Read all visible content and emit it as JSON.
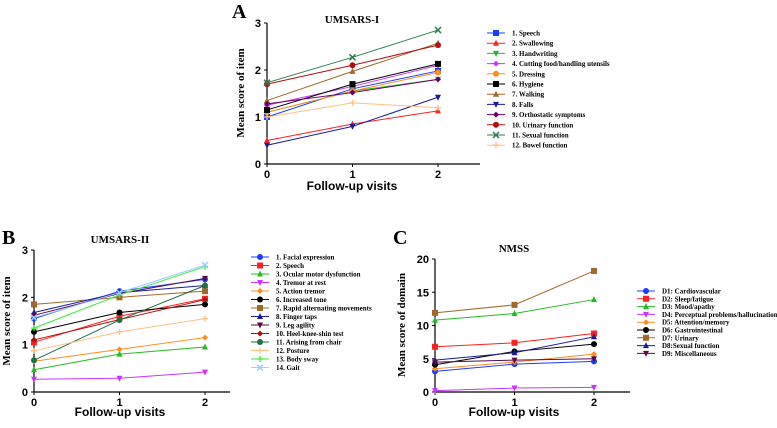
{
  "chart_data": [
    {
      "type": "line",
      "panel_label": "A",
      "title": "UMSARS-I",
      "xlabel": "Follow-up visits",
      "ylabel": "Mean score of item",
      "x": [
        0,
        1,
        2
      ],
      "xticks": [
        "0",
        "1",
        "2"
      ],
      "ylim": [
        0,
        3
      ],
      "yticks": [
        "0",
        "1",
        "2",
        "3"
      ],
      "legend_position": "right",
      "series": [
        {
          "name": "1. Speech",
          "values": [
            1.0,
            1.6,
            1.98
          ],
          "color": "#1a3cff",
          "marker": "square"
        },
        {
          "name": "2. Swallowing",
          "values": [
            0.5,
            0.85,
            1.13
          ],
          "color": "#ff2020",
          "marker": "triangle"
        },
        {
          "name": "3. Handwriting",
          "values": [
            1.1,
            1.55,
            1.8
          ],
          "color": "#22bb22",
          "marker": "triangle-down"
        },
        {
          "name": "4. Cutting food/handling utensils",
          "values": [
            1.25,
            1.65,
            2.1
          ],
          "color": "#cc33ff",
          "marker": "diamond"
        },
        {
          "name": "5. Dressing",
          "values": [
            1.1,
            1.55,
            1.95
          ],
          "color": "#ff8c1a",
          "marker": "circle"
        },
        {
          "name": "6. Hygiene",
          "values": [
            1.15,
            1.7,
            2.13
          ],
          "color": "#000000",
          "marker": "square"
        },
        {
          "name": "7. Walking",
          "values": [
            1.35,
            1.97,
            2.57
          ],
          "color": "#a0692a",
          "marker": "triangle"
        },
        {
          "name": "8. Falls",
          "values": [
            0.4,
            0.8,
            1.42
          ],
          "color": "#1a1a9c",
          "marker": "triangle-down"
        },
        {
          "name": "9. Orthostatic symptoms",
          "values": [
            1.28,
            1.52,
            1.8
          ],
          "color": "#660066",
          "marker": "diamond"
        },
        {
          "name": "10. Urinary function",
          "values": [
            1.7,
            2.1,
            2.53
          ],
          "color": "#b01010",
          "marker": "circle"
        },
        {
          "name": "11. Sexual function",
          "values": [
            1.73,
            2.27,
            2.85
          ],
          "color": "#2e7d4f",
          "marker": "x"
        },
        {
          "name": "12. Bowel function",
          "values": [
            1.0,
            1.3,
            1.2
          ],
          "color": "#ffbf80",
          "marker": "plus"
        }
      ]
    },
    {
      "type": "line",
      "panel_label": "B",
      "title": "UMSARS-II",
      "xlabel": "Follow-up visits",
      "ylabel": "Mean score of item",
      "x": [
        0,
        1,
        2
      ],
      "xticks": [
        "0",
        "1",
        "2"
      ],
      "ylim": [
        0,
        3
      ],
      "yticks": [
        "0",
        "1",
        "2",
        "3"
      ],
      "legend_position": "right",
      "series": [
        {
          "name": "1. Facial expression",
          "values": [
            1.55,
            2.13,
            2.38
          ],
          "color": "#1a3cff",
          "marker": "circle"
        },
        {
          "name": "2. Speech",
          "values": [
            1.05,
            1.6,
            1.97
          ],
          "color": "#ff2020",
          "marker": "square"
        },
        {
          "name": "3. Ocular motor dysfunction",
          "values": [
            0.47,
            0.8,
            0.95
          ],
          "color": "#22bb22",
          "marker": "triangle"
        },
        {
          "name": "4. Tremor at rest",
          "values": [
            0.27,
            0.29,
            0.42
          ],
          "color": "#cc33ff",
          "marker": "triangle-down"
        },
        {
          "name": "5. Action tremor",
          "values": [
            0.65,
            0.9,
            1.15
          ],
          "color": "#ff8c1a",
          "marker": "diamond"
        },
        {
          "name": "6. Increased tone",
          "values": [
            1.27,
            1.68,
            1.85
          ],
          "color": "#000000",
          "marker": "circle"
        },
        {
          "name": "7. Rapid alternating movements",
          "values": [
            1.85,
            2.0,
            2.13
          ],
          "color": "#a0692a",
          "marker": "square"
        },
        {
          "name": "8. Finger taps",
          "values": [
            1.68,
            2.1,
            2.25
          ],
          "color": "#1a1a9c",
          "marker": "triangle"
        },
        {
          "name": "9. Leg agility",
          "values": [
            1.62,
            2.08,
            2.4
          ],
          "color": "#5a0a4a",
          "marker": "triangle-down"
        },
        {
          "name": "10. Heel-knee-shin test",
          "values": [
            1.1,
            1.53,
            1.95
          ],
          "color": "#b01010",
          "marker": "diamond"
        },
        {
          "name": "11. Arising from chair",
          "values": [
            0.67,
            1.52,
            2.25
          ],
          "color": "#1e6e46",
          "marker": "circle"
        },
        {
          "name": "12. Posture",
          "values": [
            0.87,
            1.27,
            1.55
          ],
          "color": "#ffbf80",
          "marker": "star"
        },
        {
          "name": "13. Body sway",
          "values": [
            1.35,
            2.05,
            2.65
          ],
          "color": "#33ee33",
          "marker": "plus"
        },
        {
          "name": "14. Gait",
          "values": [
            1.57,
            2.1,
            2.68
          ],
          "color": "#99ccff",
          "marker": "x"
        }
      ]
    },
    {
      "type": "line",
      "panel_label": "C",
      "title": "NMSS",
      "xlabel": "Follow-up visits",
      "ylabel": "Mean score of domain",
      "x": [
        0,
        1,
        2
      ],
      "xticks": [
        "0",
        "1",
        "2"
      ],
      "ylim": [
        0,
        20
      ],
      "yticks": [
        "0",
        "5",
        "10",
        "15",
        "20"
      ],
      "legend_position": "right",
      "series": [
        {
          "name": "D1: Cardiovascular",
          "values": [
            3.1,
            4.2,
            4.6
          ],
          "color": "#1a3cff",
          "marker": "circle"
        },
        {
          "name": "D2: Sleep/fatigue",
          "values": [
            6.8,
            7.4,
            8.8
          ],
          "color": "#ff2020",
          "marker": "square"
        },
        {
          "name": "D3: Mood/apathy",
          "values": [
            10.8,
            11.8,
            13.9
          ],
          "color": "#22bb22",
          "marker": "triangle"
        },
        {
          "name": "D4: Perceptual problems/hallucinations",
          "values": [
            0.2,
            0.6,
            0.7
          ],
          "color": "#cc33ff",
          "marker": "triangle-down"
        },
        {
          "name": "D5: Attention/memory",
          "values": [
            3.5,
            4.5,
            5.7
          ],
          "color": "#ff8c1a",
          "marker": "diamond"
        },
        {
          "name": "D6: Gastrointestinal",
          "values": [
            4.1,
            6.1,
            7.2
          ],
          "color": "#000000",
          "marker": "circle"
        },
        {
          "name": "D7: Urinary",
          "values": [
            11.9,
            13.1,
            18.2
          ],
          "color": "#a0692a",
          "marker": "square"
        },
        {
          "name": "D8:Sexual function",
          "values": [
            4.8,
            5.9,
            8.3
          ],
          "color": "#1a1a9c",
          "marker": "triangle"
        },
        {
          "name": "D9: Miscellaneous",
          "values": [
            4.5,
            4.8,
            5.0
          ],
          "color": "#5a0a4a",
          "marker": "triangle-down"
        }
      ]
    }
  ]
}
